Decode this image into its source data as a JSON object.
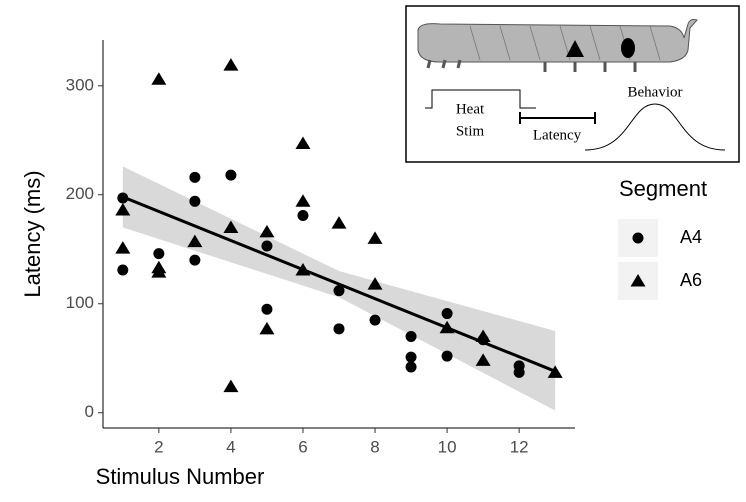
{
  "chart_data": {
    "type": "scatter",
    "xlabel": "Stimulus Number",
    "ylabel": "Latency (ms)",
    "xlim": [
      0.45,
      13.55
    ],
    "ylim": [
      -14,
      342
    ],
    "xticks": [
      2,
      4,
      6,
      8,
      10,
      12
    ],
    "yticks": [
      0,
      100,
      200,
      300
    ],
    "grid": false,
    "legend_title": "Segment",
    "legend_position": "right",
    "series": [
      {
        "name": "A4",
        "color": "#000000",
        "marker": "circle",
        "x": [
          1,
          1,
          2,
          3,
          3,
          3,
          4,
          5,
          5,
          6,
          7,
          7,
          8,
          9,
          9,
          9,
          10,
          10,
          11,
          12,
          12
        ],
        "values": [
          197,
          131,
          146,
          216,
          194,
          140,
          218,
          153,
          95,
          181,
          112,
          77,
          85,
          70,
          51,
          42,
          91,
          52,
          67,
          43,
          37
        ]
      },
      {
        "name": "A6",
        "color": "#000000",
        "marker": "triangle",
        "x": [
          1,
          1,
          2,
          2,
          2,
          3,
          4,
          4,
          4,
          5,
          5,
          6,
          6,
          6,
          7,
          8,
          8,
          10,
          11,
          11,
          13
        ],
        "values": [
          186,
          151,
          306,
          133,
          129,
          157,
          319,
          170,
          24,
          166,
          77,
          247,
          194,
          131,
          174,
          160,
          118,
          78,
          70,
          48,
          37
        ]
      }
    ],
    "trend": {
      "color": "#000000",
      "band_color": "#d9d9d9",
      "x": [
        1,
        7,
        13
      ],
      "y": [
        198,
        118,
        38
      ],
      "lower": [
        170,
        106,
        2
      ],
      "upper": [
        226,
        130,
        75
      ]
    },
    "inset": {
      "labels": [
        "Heat",
        "Stim",
        "Latency",
        "Behavior"
      ]
    }
  }
}
